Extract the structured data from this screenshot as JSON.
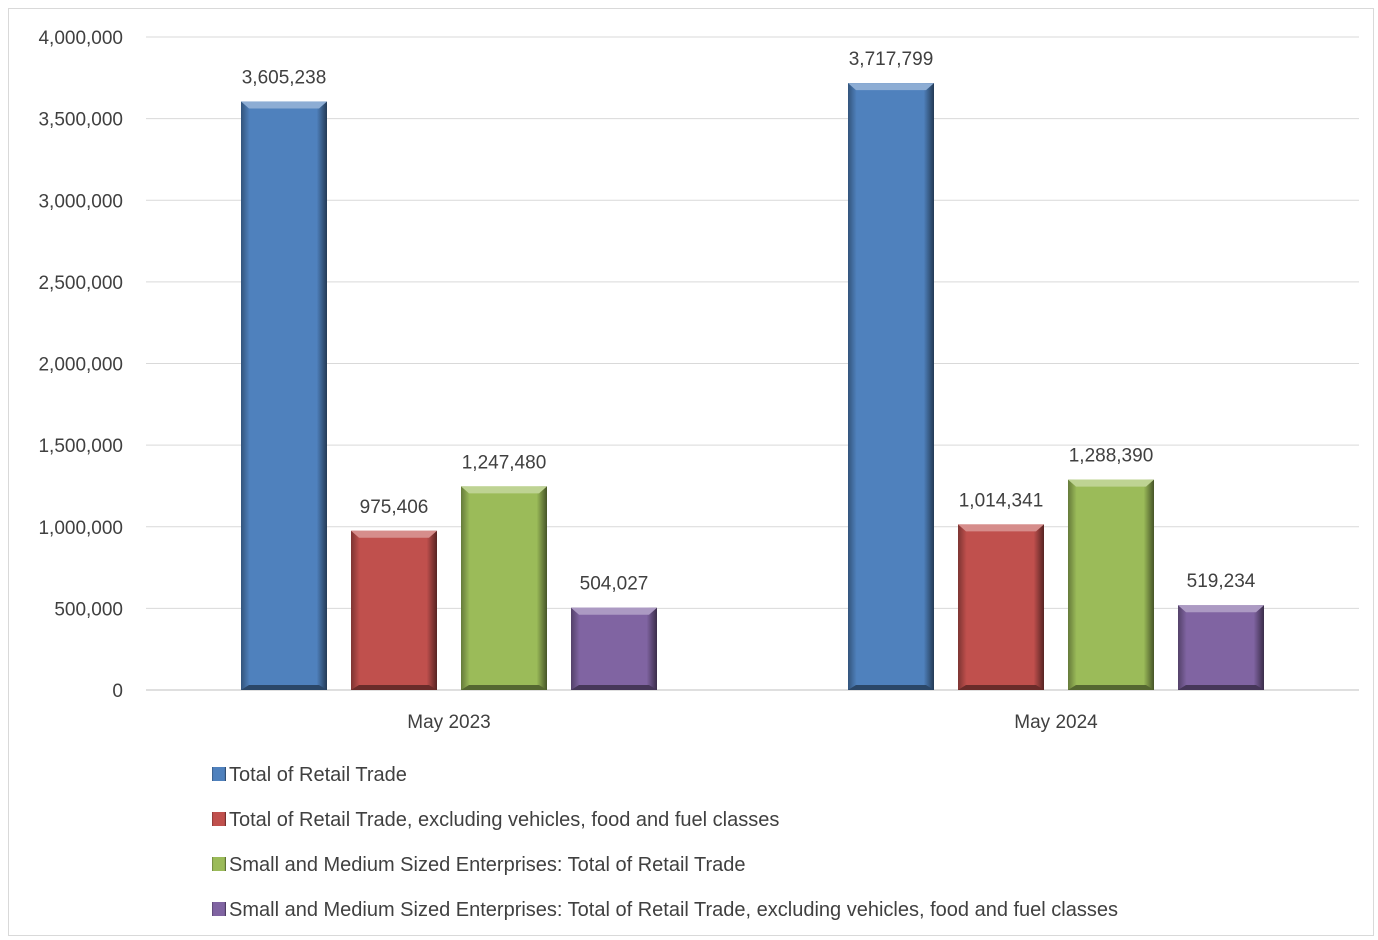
{
  "chart_data": {
    "type": "bar",
    "title": "",
    "xlabel": "",
    "ylabel": "",
    "categories": [
      "May 2023",
      "May 2024"
    ],
    "series": [
      {
        "name": "Total of Retail Trade",
        "values": [
          3605238,
          3717799
        ],
        "labels": [
          "3,605,238",
          "3,717,799"
        ],
        "color": "#4f81bd"
      },
      {
        "name": "Total of Retail Trade, excluding vehicles, food and fuel classes",
        "values": [
          975406,
          1014341
        ],
        "labels": [
          "975,406",
          "1,014,341"
        ],
        "color": "#c0504d"
      },
      {
        "name": "Small and Medium Sized Enterprises: Total of Retail Trade",
        "values": [
          1247480,
          1288390
        ],
        "labels": [
          "1,247,480",
          "1,288,390"
        ],
        "color": "#9bbb59"
      },
      {
        "name": "Small and Medium Sized Enterprises: Total of Retail Trade, excluding vehicles, food and fuel classes",
        "values": [
          504027,
          519234
        ],
        "labels": [
          "504,027",
          "519,234"
        ],
        "color": "#8064a2"
      }
    ],
    "ylim": [
      0,
      4000000
    ],
    "yticks": [
      0,
      500000,
      1000000,
      1500000,
      2000000,
      2500000,
      3000000,
      3500000,
      4000000
    ],
    "ytick_labels": [
      "0",
      "500,000",
      "1,000,000",
      "1,500,000",
      "2,000,000",
      "2,500,000",
      "3,000,000",
      "3,500,000",
      "4,000,000"
    ],
    "grid": true,
    "legend_position": "bottom"
  }
}
